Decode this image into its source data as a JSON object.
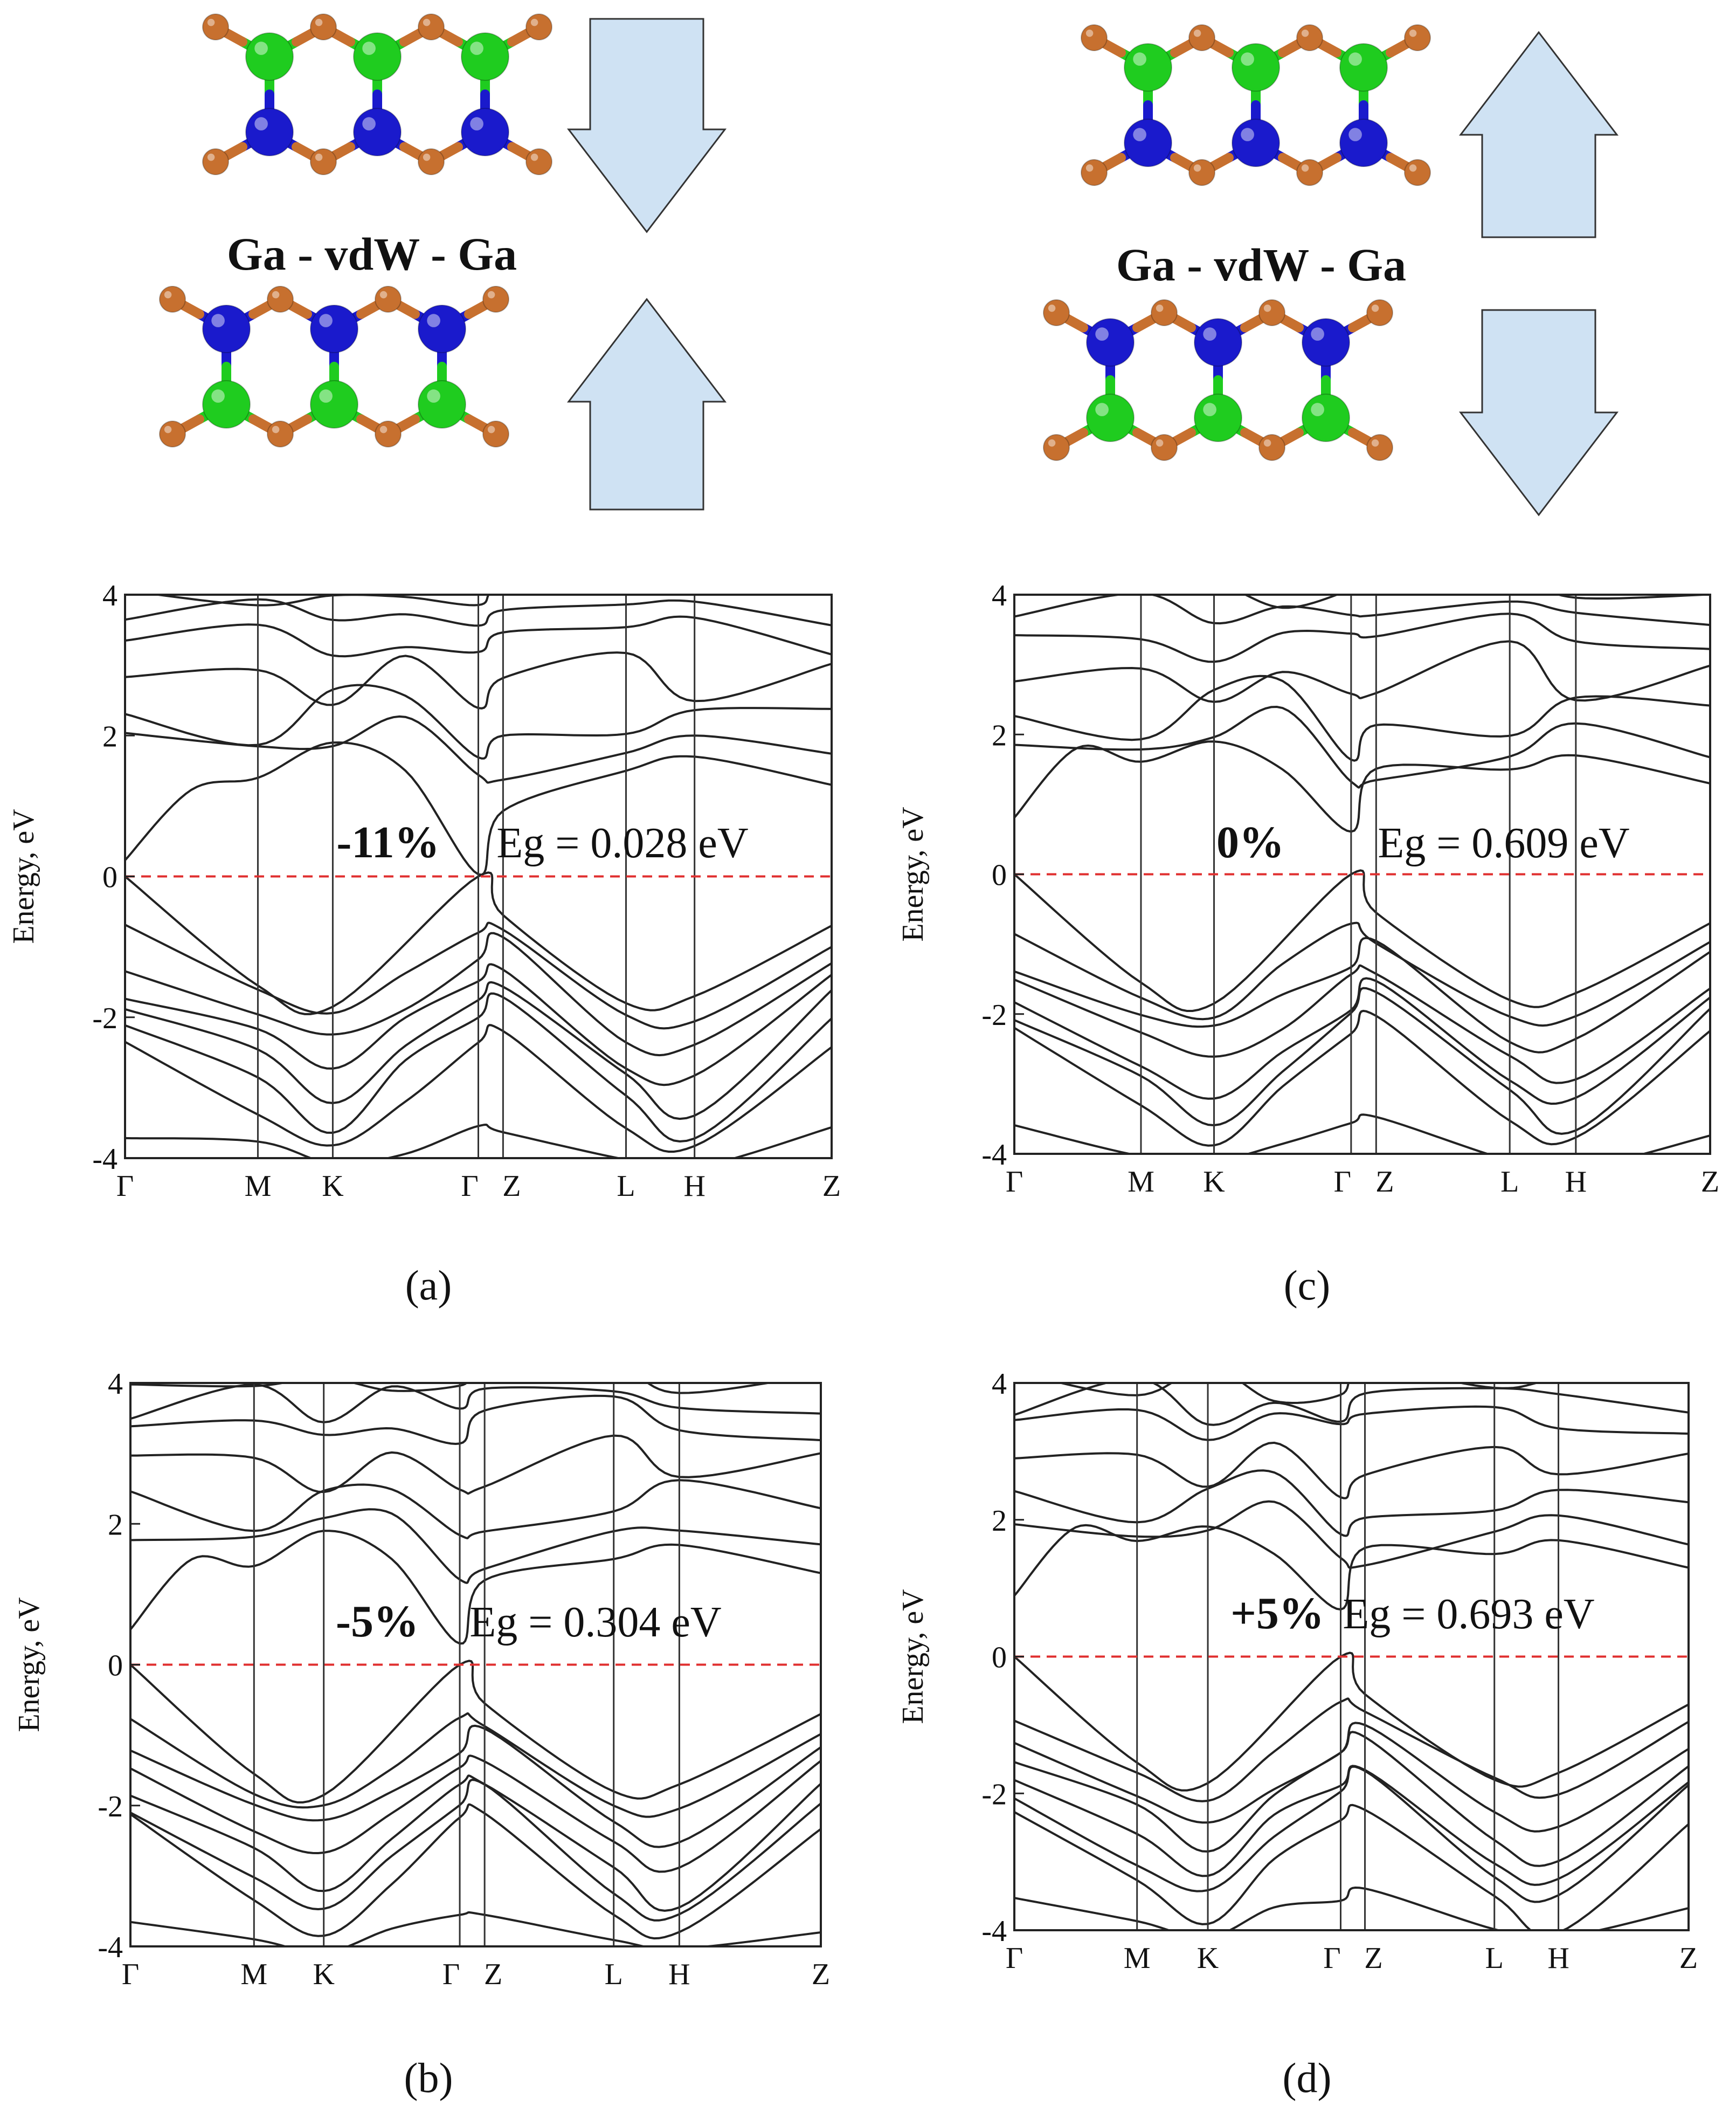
{
  "colors": {
    "ga_atom": "#1fcc1f",
    "n_atom": "#1a1acc",
    "outer_atom": "#c7702f",
    "arrow_fill": "#cfe2f3",
    "fermi_line": "#e03030",
    "band_line": "#222222"
  },
  "structures": [
    {
      "label": "Ga - vdW - Ga",
      "top_layer_arrow": "down",
      "bottom_layer_arrow": "up"
    },
    {
      "label": "Ga - vdW - Ga",
      "top_layer_arrow": "up",
      "bottom_layer_arrow": "down"
    }
  ],
  "chart_data": [
    {
      "type": "line",
      "panel": "(a)",
      "ylabel": "Energy, eV",
      "ylim": [
        -4,
        4
      ],
      "yticks": [
        "4",
        "2",
        "0",
        "-2",
        "-4"
      ],
      "kpath": [
        "Γ",
        "M",
        "K",
        "Γ",
        "Z",
        "L",
        "H",
        "Z"
      ],
      "kpos": [
        0,
        0.188,
        0.294,
        0.5,
        0.535,
        0.709,
        0.806,
        1.0
      ],
      "strain": "-11%",
      "gap_label": "Eg = 0.028 eV",
      "cbm": 0.03,
      "vbm": 0.0,
      "fermi": 0
    },
    {
      "type": "line",
      "panel": "(b)",
      "ylabel": "Energy, eV",
      "ylim": [
        -4,
        4
      ],
      "yticks": [
        "4",
        "2",
        "0",
        "-2",
        "-4"
      ],
      "kpath": [
        "Γ",
        "M",
        "K",
        "Γ",
        "Z",
        "L",
        "H",
        "Z"
      ],
      "kpos": [
        0,
        0.179,
        0.28,
        0.477,
        0.513,
        0.7,
        0.795,
        1.0
      ],
      "strain": "-5%",
      "gap_label": "Eg = 0.304 eV",
      "cbm": 0.3,
      "vbm": 0.0,
      "fermi": 0
    },
    {
      "type": "line",
      "panel": "(c)",
      "ylabel": "Energy, eV",
      "ylim": [
        -4,
        4
      ],
      "yticks": [
        "4",
        "2",
        "0",
        "-2",
        "-4"
      ],
      "kpath": [
        "Γ",
        "M",
        "K",
        "Γ",
        "Z",
        "L",
        "H",
        "Z"
      ],
      "kpos": [
        0,
        0.182,
        0.287,
        0.484,
        0.52,
        0.712,
        0.807,
        1.0
      ],
      "strain": "0%",
      "gap_label": "Eg = 0.609 eV",
      "cbm": 0.61,
      "vbm": 0.0,
      "fermi": 0
    },
    {
      "type": "line",
      "panel": "(d)",
      "ylabel": "Energy, eV",
      "ylim": [
        -4,
        4
      ],
      "yticks": [
        "4",
        "2",
        "0",
        "-2",
        "-4"
      ],
      "kpath": [
        "Γ",
        "M",
        "K",
        "Γ",
        "Z",
        "L",
        "H",
        "Z"
      ],
      "kpos": [
        0,
        0.182,
        0.287,
        0.484,
        0.52,
        0.712,
        0.807,
        1.0
      ],
      "strain": "+5%",
      "gap_label": "Eg = 0.693 eV",
      "cbm": 0.69,
      "vbm": 0.0,
      "fermi": 0
    }
  ]
}
